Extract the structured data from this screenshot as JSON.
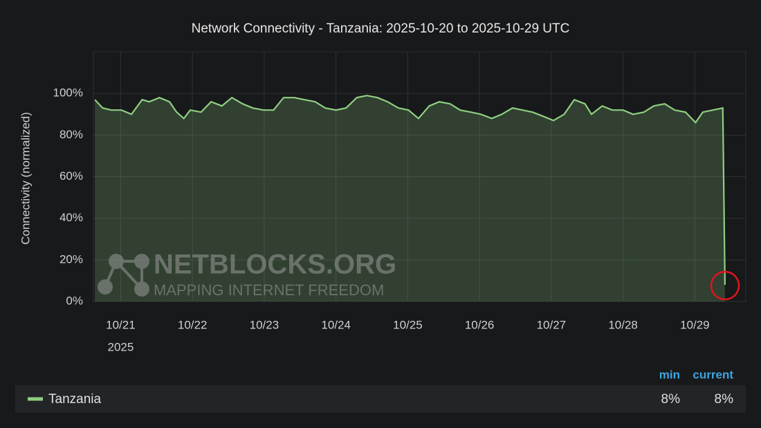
{
  "chart_data": {
    "type": "area",
    "title": "Network Connectivity - Tanzania: 2025-10-20 to 2025-10-29 UTC",
    "ylabel": "Connectivity (normalized)",
    "x": [
      20.64,
      20.75,
      20.87,
      21.01,
      21.15,
      21.3,
      21.4,
      21.54,
      21.68,
      21.78,
      21.88,
      21.97,
      22.12,
      22.26,
      22.41,
      22.55,
      22.7,
      22.84,
      22.99,
      23.13,
      23.27,
      23.42,
      23.56,
      23.71,
      23.85,
      24.0,
      24.14,
      24.29,
      24.43,
      24.58,
      24.72,
      24.87,
      25.01,
      25.15,
      25.3,
      25.44,
      25.59,
      25.73,
      25.88,
      26.02,
      26.17,
      26.31,
      26.46,
      26.6,
      26.74,
      26.89,
      27.03,
      27.18,
      27.32,
      27.47,
      27.56,
      27.71,
      27.85,
      28.0,
      28.14,
      28.29,
      28.43,
      28.58,
      28.72,
      28.87,
      29.01,
      29.11,
      29.25,
      29.39,
      29.42
    ],
    "series": [
      {
        "name": "Tanzania",
        "color": "#8fcf80",
        "values": [
          97,
          93,
          92,
          92,
          90,
          97,
          96,
          98,
          96,
          91,
          88,
          92,
          91,
          96,
          94,
          98,
          95,
          93,
          92,
          92,
          98,
          98,
          97,
          96,
          93,
          92,
          93,
          98,
          99,
          98,
          96,
          93,
          92,
          88,
          94,
          96,
          95,
          92,
          91,
          90,
          88,
          90,
          93,
          92,
          91,
          89,
          87,
          90,
          97,
          95,
          90,
          94,
          92,
          92,
          90,
          91,
          94,
          95,
          92,
          91,
          86,
          91,
          92,
          93,
          8
        ]
      }
    ],
    "xlim": [
      20.62,
      29.71
    ],
    "xticks": [
      {
        "value": 21,
        "label": "10/21"
      },
      {
        "value": 22,
        "label": "10/22"
      },
      {
        "value": 23,
        "label": "10/23"
      },
      {
        "value": 24,
        "label": "10/24"
      },
      {
        "value": 25,
        "label": "10/25"
      },
      {
        "value": 26,
        "label": "10/26"
      },
      {
        "value": 27,
        "label": "10/27"
      },
      {
        "value": 28,
        "label": "10/28"
      },
      {
        "value": 29,
        "label": "10/29"
      }
    ],
    "xtick_year": "2025",
    "ylim": [
      0,
      120
    ],
    "yticks": [
      {
        "value": 0,
        "label": "0%"
      },
      {
        "value": 20,
        "label": "20%"
      },
      {
        "value": 40,
        "label": "40%"
      },
      {
        "value": 60,
        "label": "60%"
      },
      {
        "value": 80,
        "label": "80%"
      },
      {
        "value": 100,
        "label": "100%"
      }
    ],
    "grid": true,
    "legend_stats": [
      {
        "name": "min",
        "value": 8,
        "label": "8%"
      },
      {
        "name": "current",
        "value": 8,
        "label": "8%"
      }
    ],
    "watermark": {
      "brand": "NETBLOCKS.ORG",
      "tagline": "MAPPING INTERNET FREEDOM"
    }
  }
}
